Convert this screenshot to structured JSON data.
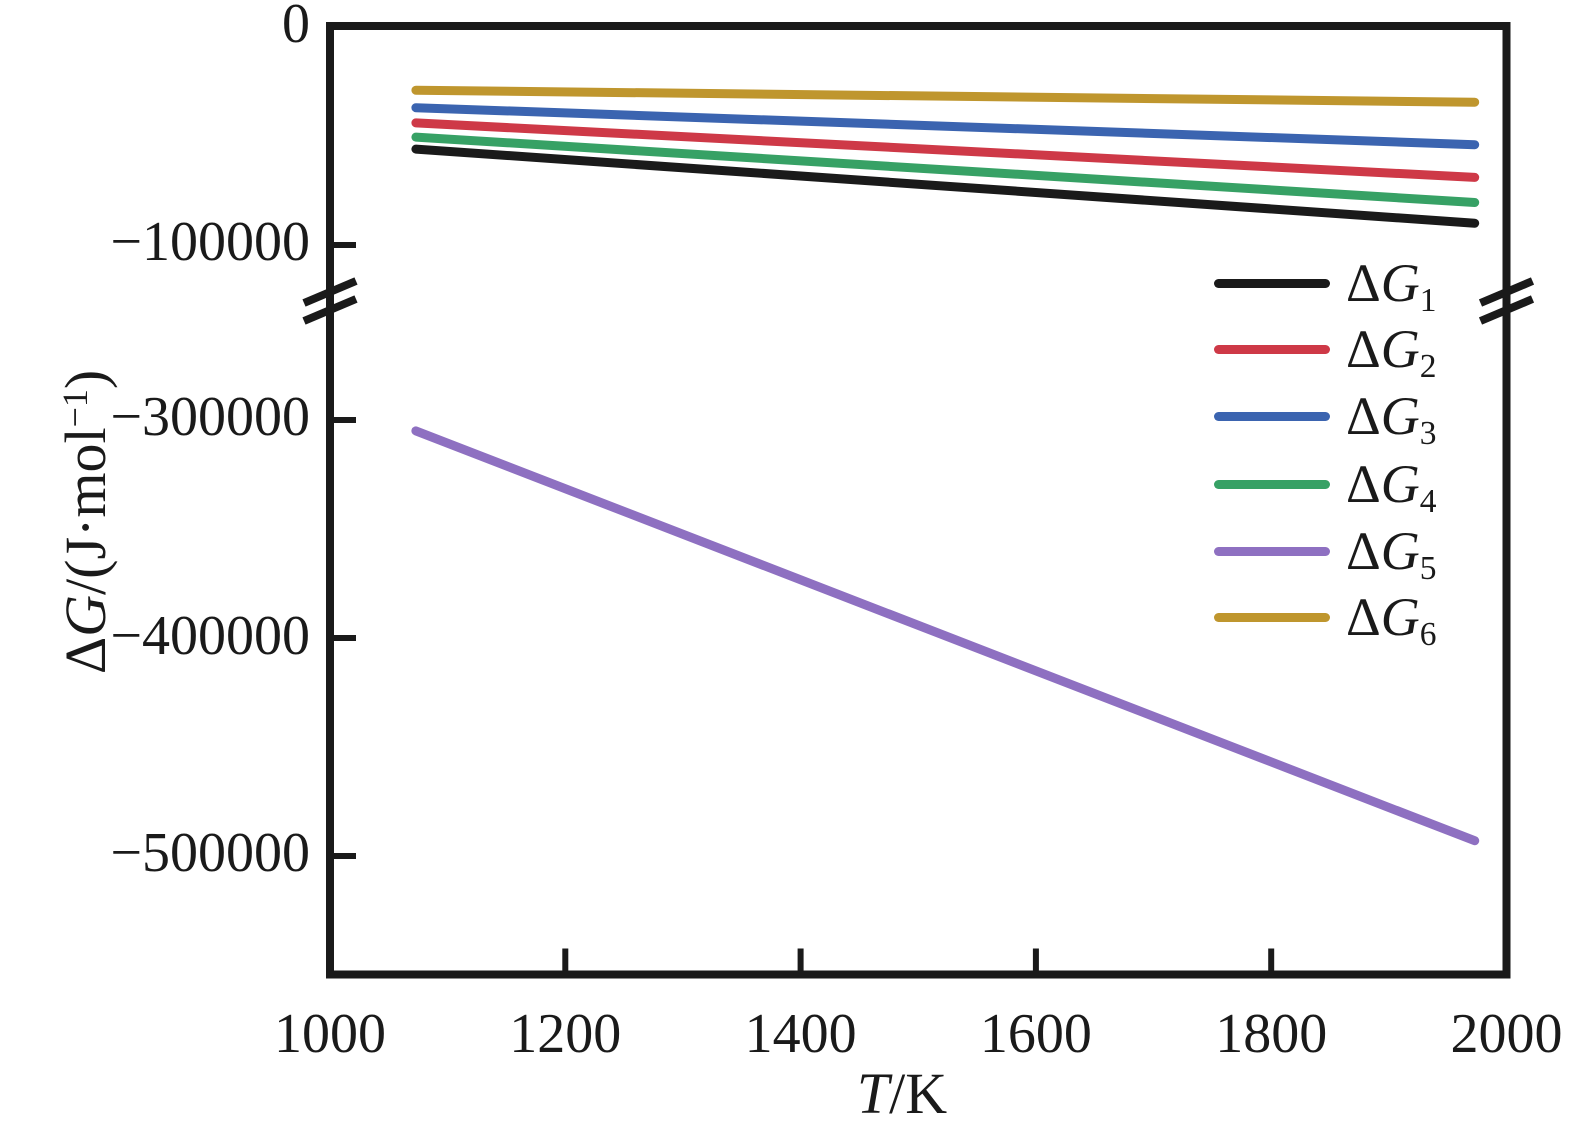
{
  "figure": {
    "background": "#ffffff",
    "ink_color": "#1a1a1a"
  },
  "chart_data": {
    "type": "line",
    "title": "",
    "xlabel": "T/K",
    "ylabel": "ΔG/(J·mol−1)",
    "xlabel_parts": {
      "var": "T",
      "rest": "/K"
    },
    "ylabel_parts": {
      "delta": "Δ",
      "var": "G",
      "mid": "/(J·mol",
      "sup": "−1",
      "end": ")"
    },
    "x_axis": {
      "min": 1000,
      "max": 2000
    },
    "x_data_range": [
      1073,
      1973
    ],
    "x_ticks": [
      {
        "value": 1000,
        "label": "1000"
      },
      {
        "value": 1200,
        "label": "1200"
      },
      {
        "value": 1400,
        "label": "1400"
      },
      {
        "value": 1600,
        "label": "1600"
      },
      {
        "value": 1800,
        "label": "1800"
      },
      {
        "value": 2000,
        "label": "2000"
      }
    ],
    "y_axis_break": {
      "skipped_range": [
        -121000,
        -253000
      ]
    },
    "y_ticks_top": [
      {
        "value": 0,
        "label": "0"
      },
      {
        "value": -100000,
        "label": "−100000"
      }
    ],
    "y_ticks_bottom": [
      {
        "value": -300000,
        "label": "−300000"
      },
      {
        "value": -400000,
        "label": "−400000"
      },
      {
        "value": -500000,
        "label": "−500000"
      }
    ],
    "grid": false,
    "legend_position": "upper-right-inside",
    "series": [
      {
        "id": "dg1",
        "name": "ΔG1",
        "label": {
          "delta": "Δ",
          "var": "G",
          "sub": "1"
        },
        "color": "#1a1a1a",
        "points": [
          [
            1073,
            -56000
          ],
          [
            1973,
            -90000
          ]
        ]
      },
      {
        "id": "dg2",
        "name": "ΔG2",
        "label": {
          "delta": "Δ",
          "var": "G",
          "sub": "2"
        },
        "color": "#ce3947",
        "points": [
          [
            1073,
            -44000
          ],
          [
            1973,
            -69000
          ]
        ]
      },
      {
        "id": "dg3",
        "name": "ΔG3",
        "label": {
          "delta": "Δ",
          "var": "G",
          "sub": "3"
        },
        "color": "#3b64b0",
        "points": [
          [
            1073,
            -37000
          ],
          [
            1973,
            -54000
          ]
        ]
      },
      {
        "id": "dg4",
        "name": "ΔG4",
        "label": {
          "delta": "Δ",
          "var": "G",
          "sub": "4"
        },
        "color": "#37a165",
        "points": [
          [
            1073,
            -50500
          ],
          [
            1973,
            -80500
          ]
        ]
      },
      {
        "id": "dg5",
        "name": "ΔG5",
        "label": {
          "delta": "Δ",
          "var": "G",
          "sub": "5"
        },
        "color": "#8e70c1",
        "points": [
          [
            1073,
            -305000
          ],
          [
            1973,
            -493000
          ]
        ]
      },
      {
        "id": "dg6",
        "name": "ΔG6",
        "label": {
          "delta": "Δ",
          "var": "G",
          "sub": "6"
        },
        "color": "#bf962e",
        "points": [
          [
            1073,
            -29000
          ],
          [
            1973,
            -34500
          ]
        ]
      }
    ]
  }
}
